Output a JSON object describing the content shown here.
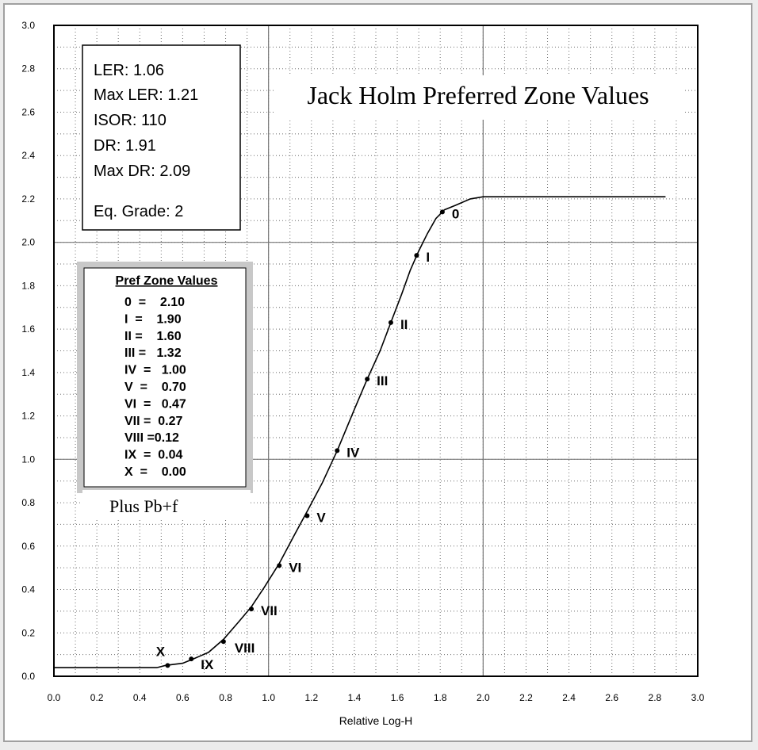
{
  "chart_data": {
    "type": "line",
    "title": "Jack Holm Preferred Zone Values",
    "xlabel": "Relative Log-H",
    "ylabel": "",
    "xlim": [
      0.0,
      3.0
    ],
    "ylim": [
      0.0,
      3.0
    ],
    "x_ticks": [
      "0.0",
      "0.2",
      "0.4",
      "0.6",
      "0.8",
      "1.0",
      "1.2",
      "1.4",
      "1.6",
      "1.8",
      "2.0",
      "2.2",
      "2.4",
      "2.6",
      "2.8",
      "3.0"
    ],
    "y_ticks": [
      "0.0",
      "0.2",
      "0.4",
      "0.6",
      "0.8",
      "1.0",
      "1.2",
      "1.4",
      "1.6",
      "1.8",
      "2.0",
      "2.2",
      "2.4",
      "2.6",
      "2.8",
      "3.0"
    ],
    "grid": true,
    "minor_grid": "dotted",
    "major_grid_lines": {
      "x": [
        1.0,
        2.0
      ],
      "y": [
        1.0,
        2.0
      ]
    },
    "curve": {
      "x": [
        0.0,
        0.48,
        0.52,
        0.6,
        0.65,
        0.72,
        0.79,
        0.86,
        0.92,
        0.98,
        1.05,
        1.12,
        1.18,
        1.25,
        1.32,
        1.4,
        1.46,
        1.52,
        1.57,
        1.62,
        1.66,
        1.7,
        1.74,
        1.78,
        1.82,
        1.87,
        1.94,
        2.0,
        2.85
      ],
      "y": [
        0.04,
        0.04,
        0.05,
        0.06,
        0.08,
        0.11,
        0.17,
        0.25,
        0.32,
        0.41,
        0.52,
        0.65,
        0.76,
        0.89,
        1.04,
        1.23,
        1.37,
        1.5,
        1.63,
        1.76,
        1.87,
        1.96,
        2.04,
        2.11,
        2.15,
        2.17,
        2.2,
        2.21,
        2.21
      ]
    },
    "zones": [
      {
        "label": "0",
        "x": 1.81,
        "y": 2.14
      },
      {
        "label": "I",
        "x": 1.69,
        "y": 1.94
      },
      {
        "label": "II",
        "x": 1.57,
        "y": 1.63
      },
      {
        "label": "III",
        "x": 1.46,
        "y": 1.37
      },
      {
        "label": "IV",
        "x": 1.32,
        "y": 1.04
      },
      {
        "label": "V",
        "x": 1.18,
        "y": 0.74
      },
      {
        "label": "VI",
        "x": 1.05,
        "y": 0.51
      },
      {
        "label": "VII",
        "x": 0.92,
        "y": 0.31
      },
      {
        "label": "VIII",
        "x": 0.79,
        "y": 0.16
      },
      {
        "label": "IX",
        "x": 0.64,
        "y": 0.08
      },
      {
        "label": "X",
        "x": 0.53,
        "y": 0.05
      }
    ]
  },
  "stats_box": {
    "ler": "LER:  1.06",
    "max_ler": "Max LER:  1.21",
    "isor": "ISOR:   110",
    "dr": "DR:  1.91",
    "max_dr": "Max DR:  2.09",
    "eq_grade": "Eq. Grade:   2"
  },
  "pref_zone_box": {
    "title": "Pref Zone Values",
    "rows": [
      "0  =    2.10",
      "I  =    1.90",
      "II =    1.60",
      "III =   1.32",
      "IV  =   1.00",
      "V  =    0.70",
      "VI  =   0.47",
      "VII =  0.27",
      "VIII =0.12",
      "IX  =  0.04",
      "X  =    0.00"
    ]
  },
  "note": "Plus Pb+f"
}
